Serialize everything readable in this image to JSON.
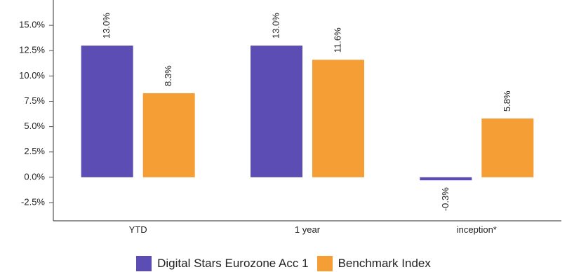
{
  "chart_data": {
    "type": "bar",
    "categories": [
      "YTD",
      "1 year",
      "inception*"
    ],
    "series": [
      {
        "name": "Digital Stars Eurozone Acc 1",
        "values": [
          13.0,
          13.0,
          -0.3
        ],
        "color": "#5b4db3"
      },
      {
        "name": "Benchmark Index",
        "values": [
          8.3,
          11.6,
          5.8
        ],
        "color": "#f59e36"
      }
    ],
    "data_labels": [
      [
        "13.0%",
        "13.0%",
        "-0.3%"
      ],
      [
        "8.3%",
        "11.6%",
        "5.8%"
      ]
    ],
    "yticks": [
      "-2.5%",
      "0.0%",
      "2.5%",
      "5.0%",
      "7.5%",
      "10.0%",
      "12.5%",
      "15.0%"
    ],
    "ylim": [
      -4.3,
      17.5
    ],
    "grid": false,
    "legend": "bottom"
  }
}
